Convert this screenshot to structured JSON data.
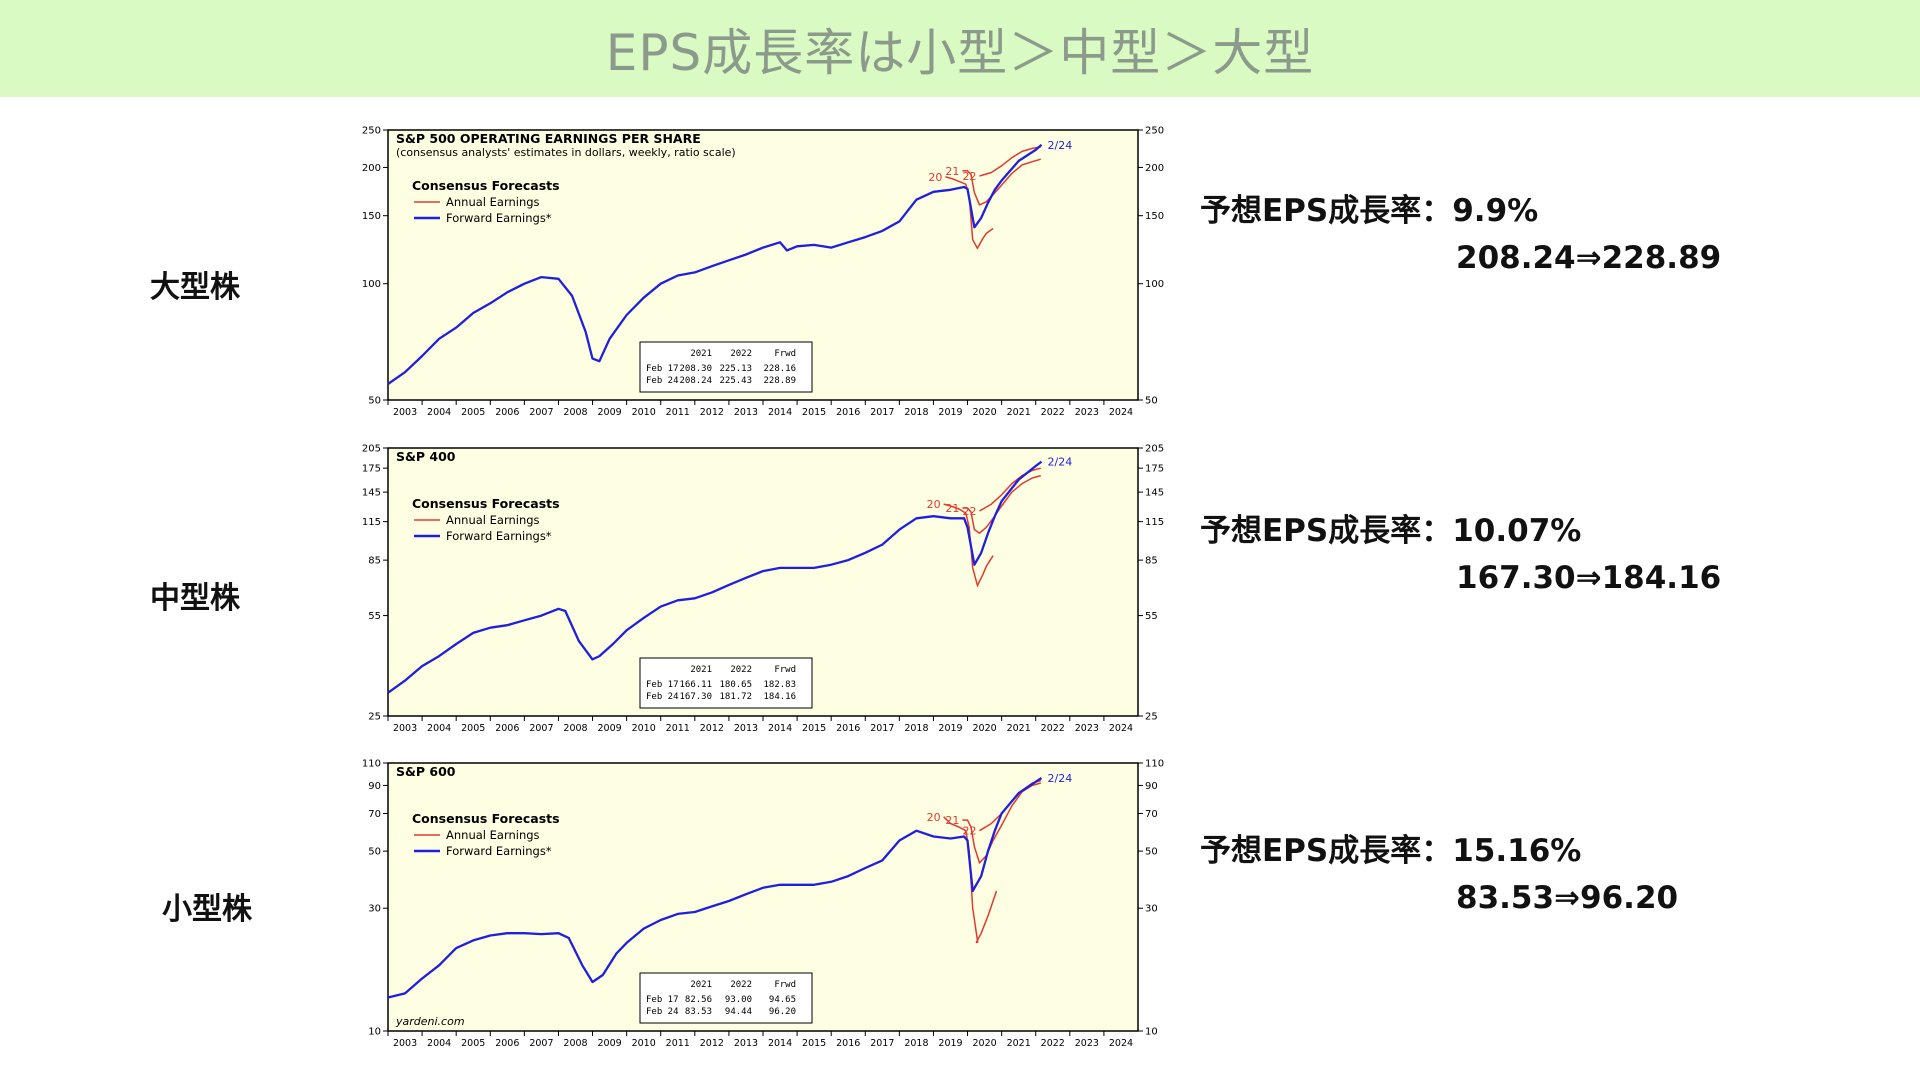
{
  "slide_title": "EPS成長率は小型＞中型＞大型",
  "colors": {
    "banner_bg": "#d9fac2",
    "plot_bg": "#fefee2",
    "forward": "#1f1fe0",
    "annual": "#e03a2e"
  },
  "segments": [
    {
      "label": "大型株",
      "growth_line": "予想EPS成長率：9.9%",
      "values_line": "208.24⇒228.89"
    },
    {
      "label": "中型株",
      "growth_line": "予想EPS成長率：10.07%",
      "values_line": "167.30⇒184.16"
    },
    {
      "label": "小型株",
      "growth_line": "予想EPS成長率：15.16%",
      "values_line": "83.53⇒96.20"
    }
  ],
  "chart_data": [
    {
      "type": "line",
      "title": "S&P 500 OPERATING EARNINGS PER SHARE",
      "subtitle": "(consensus analysts' estimates in dollars, weekly, ratio scale)",
      "legend_title": "Consensus Forecasts",
      "legend": [
        "Annual Earnings",
        "Forward Earnings*"
      ],
      "scale": "log",
      "ylim": [
        50,
        250
      ],
      "yticks": [
        "50",
        "100",
        "150",
        "200",
        "250"
      ],
      "xticks": [
        "2003",
        "2004",
        "2005",
        "2006",
        "2007",
        "2008",
        "2009",
        "2010",
        "2011",
        "2012",
        "2013",
        "2014",
        "2015",
        "2016",
        "2017",
        "2018",
        "2019",
        "2020",
        "2021",
        "2022",
        "2023",
        "2024"
      ],
      "xlim": [
        2003,
        2025
      ],
      "forward_series": {
        "name": "Forward Earnings*",
        "x": [
          2003.0,
          2003.5,
          2004.0,
          2004.5,
          2005.0,
          2005.5,
          2006.0,
          2006.5,
          2007.0,
          2007.5,
          2008.0,
          2008.4,
          2008.8,
          2009.0,
          2009.2,
          2009.5,
          2010.0,
          2010.5,
          2011.0,
          2011.5,
          2012.0,
          2012.5,
          2013.0,
          2013.5,
          2014.0,
          2014.5,
          2014.7,
          2015.0,
          2015.5,
          2016.0,
          2016.5,
          2017.0,
          2017.5,
          2018.0,
          2018.5,
          2019.0,
          2019.5,
          2019.9,
          2020.0,
          2020.2,
          2020.4,
          2020.6,
          2020.8,
          2021.0,
          2021.5,
          2022.0,
          2022.17
        ],
        "y": [
          55,
          59,
          65,
          72,
          77,
          84,
          89,
          95,
          100,
          104,
          103,
          93,
          75,
          64,
          63,
          72,
          83,
          92,
          100,
          105,
          107,
          111,
          115,
          119,
          124,
          128,
          122,
          125,
          126,
          124,
          128,
          132,
          137,
          145,
          165,
          173,
          175,
          178,
          176,
          140,
          148,
          162,
          175,
          185,
          208,
          222,
          228.89
        ]
      },
      "annual_series": [
        {
          "label": "20",
          "x": [
            2019.35,
            2019.55,
            2019.75,
            2019.95,
            2020.05,
            2020.15,
            2020.3
          ],
          "y": [
            189,
            187,
            184,
            181,
            168,
            130,
            123
          ]
        },
        {
          "label": "21",
          "x": [
            2019.85,
            2020.0,
            2020.1,
            2020.2,
            2020.35,
            2020.55,
            2020.75,
            2021.0,
            2021.3,
            2021.6,
            2021.9,
            2022.15
          ],
          "y": [
            196,
            196,
            192,
            172,
            160,
            163,
            170,
            180,
            193,
            203,
            207,
            210
          ]
        },
        {
          "label": "22",
          "x": [
            2020.35,
            2020.7,
            2021.0,
            2021.3,
            2021.6,
            2021.9,
            2022.15
          ],
          "y": [
            190,
            194,
            202,
            212,
            220,
            224,
            226
          ]
        },
        {
          "label": "",
          "x": [
            2020.3,
            2020.45,
            2020.55,
            2020.75
          ],
          "y": [
            124,
            131,
            135,
            139
          ]
        }
      ],
      "end_label": "2/24",
      "table": {
        "header": [
          "2021",
          "2022",
          "Frwd"
        ],
        "rows": [
          {
            "date": "Feb 17",
            "values": [
              "208.30",
              "225.13",
              "228.16"
            ]
          },
          {
            "date": "Feb 24",
            "values": [
              "208.24",
              "225.43",
              "228.89"
            ]
          }
        ]
      }
    },
    {
      "type": "line",
      "title": "S&P 400",
      "subtitle": "",
      "legend_title": "Consensus Forecasts",
      "legend": [
        "Annual Earnings",
        "Forward Earnings*"
      ],
      "scale": "log",
      "ylim": [
        25,
        205
      ],
      "yticks": [
        "25",
        "55",
        "85",
        "115",
        "145",
        "175",
        "205"
      ],
      "xticks": [
        "2003",
        "2004",
        "2005",
        "2006",
        "2007",
        "2008",
        "2009",
        "2010",
        "2011",
        "2012",
        "2013",
        "2014",
        "2015",
        "2016",
        "2017",
        "2018",
        "2019",
        "2020",
        "2021",
        "2022",
        "2023",
        "2024"
      ],
      "xlim": [
        2003,
        2025
      ],
      "forward_series": {
        "name": "Forward Earnings*",
        "x": [
          2003.0,
          2003.5,
          2004.0,
          2004.5,
          2005.0,
          2005.5,
          2006.0,
          2006.5,
          2007.0,
          2007.5,
          2008.0,
          2008.2,
          2008.6,
          2009.0,
          2009.2,
          2009.6,
          2010.0,
          2010.5,
          2011.0,
          2011.5,
          2012.0,
          2012.5,
          2013.0,
          2013.5,
          2014.0,
          2014.5,
          2015.0,
          2015.5,
          2016.0,
          2016.5,
          2017.0,
          2017.5,
          2018.0,
          2018.5,
          2019.0,
          2019.5,
          2019.9,
          2020.0,
          2020.2,
          2020.4,
          2020.6,
          2020.8,
          2021.0,
          2021.5,
          2022.0,
          2022.17
        ],
        "y": [
          30,
          33,
          37,
          40,
          44,
          48,
          50,
          51,
          53,
          55,
          58,
          57,
          45,
          39,
          40,
          44,
          49,
          54,
          59,
          62,
          63,
          66,
          70,
          74,
          78,
          80,
          80,
          80,
          82,
          85,
          90,
          96,
          108,
          118,
          120,
          118,
          118,
          110,
          82,
          90,
          105,
          120,
          135,
          160,
          178,
          184.16
        ]
      },
      "annual_series": [
        {
          "label": "20",
          "x": [
            2019.3,
            2019.5,
            2019.75,
            2019.95,
            2020.05,
            2020.15,
            2020.3
          ],
          "y": [
            132,
            130,
            127,
            123,
            110,
            80,
            69
          ]
        },
        {
          "label": "21",
          "x": [
            2019.85,
            2020.0,
            2020.1,
            2020.2,
            2020.35,
            2020.55,
            2020.75,
            2021.0,
            2021.3,
            2021.6,
            2021.9,
            2022.15
          ],
          "y": [
            128,
            128,
            124,
            108,
            105,
            110,
            118,
            130,
            145,
            155,
            162,
            165
          ]
        },
        {
          "label": "22",
          "x": [
            2020.35,
            2020.7,
            2021.0,
            2021.3,
            2021.6,
            2021.9,
            2022.15
          ],
          "y": [
            125,
            132,
            142,
            155,
            165,
            172,
            175
          ]
        },
        {
          "label": "",
          "x": [
            2020.3,
            2020.45,
            2020.55,
            2020.75
          ],
          "y": [
            70,
            76,
            81,
            88
          ]
        }
      ],
      "end_label": "2/24",
      "table": {
        "header": [
          "2021",
          "2022",
          "Frwd"
        ],
        "rows": [
          {
            "date": "Feb 17",
            "values": [
              "166.11",
              "180.65",
              "182.83"
            ]
          },
          {
            "date": "Feb 24",
            "values": [
              "167.30",
              "181.72",
              "184.16"
            ]
          }
        ]
      }
    },
    {
      "type": "line",
      "title": "S&P 600",
      "subtitle": "",
      "legend_title": "Consensus Forecasts",
      "legend": [
        "Annual Earnings",
        "Forward Earnings*"
      ],
      "scale": "log",
      "ylim": [
        10,
        110
      ],
      "yticks": [
        "10",
        "30",
        "50",
        "70",
        "90",
        "110"
      ],
      "xticks": [
        "2003",
        "2004",
        "2005",
        "2006",
        "2007",
        "2008",
        "2009",
        "2010",
        "2011",
        "2012",
        "2013",
        "2014",
        "2015",
        "2016",
        "2017",
        "2018",
        "2019",
        "2020",
        "2021",
        "2022",
        "2023",
        "2024"
      ],
      "xlim": [
        2003,
        2025
      ],
      "forward_series": {
        "name": "Forward Earnings*",
        "x": [
          2003.0,
          2003.5,
          2004.0,
          2004.5,
          2005.0,
          2005.5,
          2006.0,
          2006.5,
          2007.0,
          2007.5,
          2008.0,
          2008.3,
          2008.7,
          2009.0,
          2009.3,
          2009.7,
          2010.0,
          2010.5,
          2011.0,
          2011.5,
          2012.0,
          2012.5,
          2013.0,
          2013.5,
          2014.0,
          2014.5,
          2015.0,
          2015.5,
          2016.0,
          2016.5,
          2017.0,
          2017.5,
          2018.0,
          2018.5,
          2019.0,
          2019.5,
          2019.9,
          2020.0,
          2020.15,
          2020.4,
          2020.6,
          2020.8,
          2021.0,
          2021.5,
          2022.0,
          2022.17
        ],
        "y": [
          13.5,
          14,
          16,
          18,
          21,
          22.5,
          23.5,
          24,
          24,
          23.8,
          24,
          23,
          18,
          15.5,
          16.5,
          20,
          22,
          25,
          27,
          28.5,
          29,
          30.5,
          32,
          34,
          36,
          37,
          37,
          37,
          38,
          40,
          43,
          46,
          55,
          60,
          57,
          56,
          57,
          55,
          35,
          40,
          50,
          60,
          70,
          84,
          93,
          96.2
        ]
      },
      "annual_series": [
        {
          "label": "20",
          "x": [
            2019.3,
            2019.5,
            2019.75,
            2019.95,
            2020.05,
            2020.15,
            2020.3
          ],
          "y": [
            68,
            64,
            62,
            60,
            50,
            30,
            22
          ]
        },
        {
          "label": "21",
          "x": [
            2019.85,
            2020.0,
            2020.1,
            2020.2,
            2020.35,
            2020.55,
            2020.75,
            2021.0,
            2021.3,
            2021.6,
            2021.9,
            2022.15
          ],
          "y": [
            66,
            66,
            62,
            52,
            45,
            48,
            55,
            63,
            75,
            85,
            90,
            92
          ]
        },
        {
          "label": "22",
          "x": [
            2020.35,
            2020.7,
            2021.0,
            2021.3,
            2021.6,
            2021.9,
            2022.15
          ],
          "y": [
            60,
            64,
            70,
            78,
            86,
            92,
            94
          ]
        },
        {
          "label": "",
          "x": [
            2020.25,
            2020.4,
            2020.6,
            2020.85
          ],
          "y": [
            22,
            24,
            28,
            35
          ]
        }
      ],
      "end_label": "2/24",
      "footer": "yardeni.com",
      "table": {
        "header": [
          "2021",
          "2022",
          "Frwd"
        ],
        "rows": [
          {
            "date": "Feb 17",
            "values": [
              "82.56",
              "93.00",
              "94.65"
            ]
          },
          {
            "date": "Feb 24",
            "values": [
              "83.53",
              "94.44",
              "96.20"
            ]
          }
        ]
      }
    }
  ]
}
